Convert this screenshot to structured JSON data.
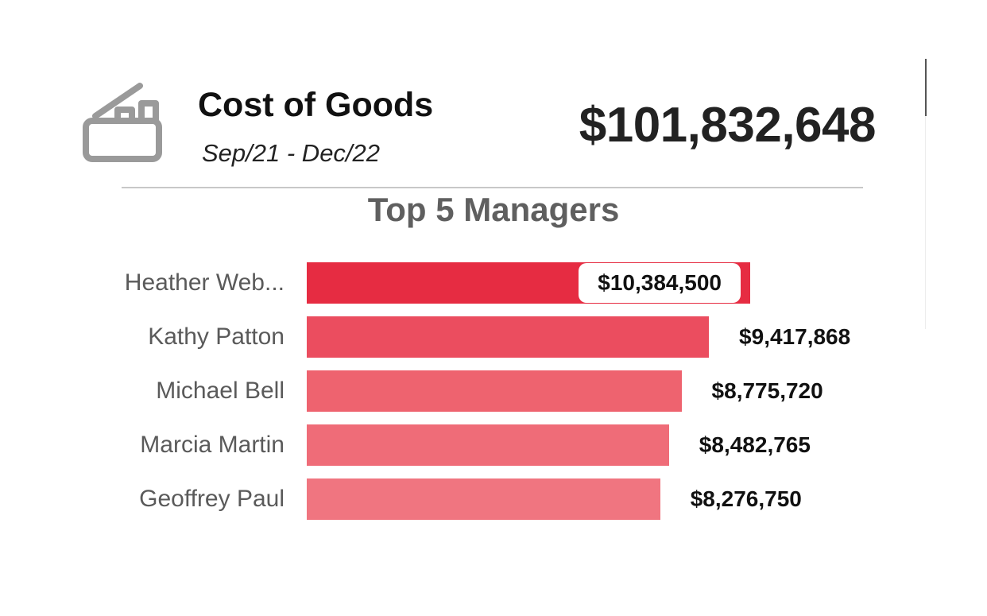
{
  "kpi": {
    "title": "Cost of Goods",
    "period": "Sep/21 - Dec/22",
    "value": "$101,832,648",
    "icon": "cash-register-icon"
  },
  "chart_data": {
    "type": "bar",
    "orientation": "horizontal",
    "title": "Top 5 Managers",
    "xlabel": "",
    "ylabel": "",
    "categories": [
      "Heather Web...",
      "Kathy Patton",
      "Michael Bell",
      "Marcia Martin",
      "Geoffrey Paul"
    ],
    "values": [
      10384500,
      9417868,
      8775720,
      8482765,
      8276750
    ],
    "value_labels": [
      "$10,384,500",
      "$9,417,868",
      "$8,775,720",
      "$8,482,765",
      "$8,276,750"
    ],
    "colors": [
      "#e62c42",
      "#eb4d5f",
      "#ee636f",
      "#ef6c78",
      "#f07580"
    ],
    "xlim": [
      0,
      11000000
    ],
    "grid": false,
    "legend": "none"
  }
}
